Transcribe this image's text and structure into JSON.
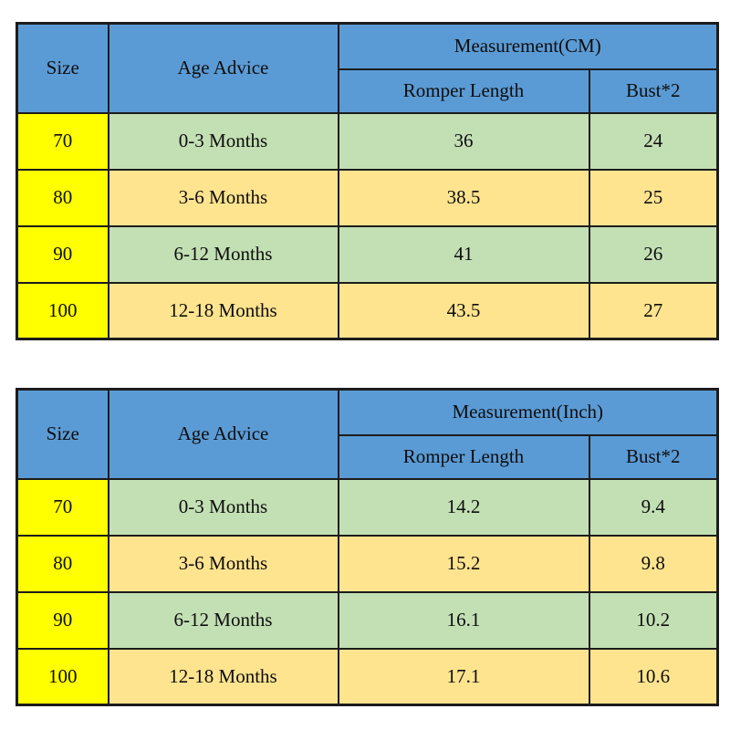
{
  "colors": {
    "header_blue": "#5b9bd5",
    "size_column_yellow": "#ffff00",
    "row_green": "#c3e0b4",
    "row_tan": "#ffe48f",
    "border_black": "#1c1c1c",
    "background_white": "#ffffff"
  },
  "tables": [
    {
      "name": "size-chart-cm",
      "headers": {
        "size": "Size",
        "age_advice": "Age Advice",
        "measurement": "Measurement(CM)",
        "romper_length": "Romper Length",
        "bust": "Bust*2"
      },
      "rows": [
        {
          "size": "70",
          "age": "0-3 Months",
          "romper_length": "36",
          "bust": "24"
        },
        {
          "size": "80",
          "age": "3-6 Months",
          "romper_length": "38.5",
          "bust": "25"
        },
        {
          "size": "90",
          "age": "6-12 Months",
          "romper_length": "41",
          "bust": "26"
        },
        {
          "size": "100",
          "age": "12-18 Months",
          "romper_length": "43.5",
          "bust": "27"
        }
      ]
    },
    {
      "name": "size-chart-inch",
      "headers": {
        "size": "Size",
        "age_advice": "Age Advice",
        "measurement": "Measurement(Inch)",
        "romper_length": "Romper Length",
        "bust": "Bust*2"
      },
      "rows": [
        {
          "size": "70",
          "age": "0-3 Months",
          "romper_length": "14.2",
          "bust": "9.4"
        },
        {
          "size": "80",
          "age": "3-6 Months",
          "romper_length": "15.2",
          "bust": "9.8"
        },
        {
          "size": "90",
          "age": "6-12 Months",
          "romper_length": "16.1",
          "bust": "10.2"
        },
        {
          "size": "100",
          "age": "12-18 Months",
          "romper_length": "17.1",
          "bust": "10.6"
        }
      ]
    }
  ],
  "chart_data": [
    {
      "type": "table",
      "title": "Measurement(CM)",
      "columns": [
        "Size",
        "Age Advice",
        "Romper Length",
        "Bust*2"
      ],
      "rows": [
        [
          "70",
          "0-3 Months",
          36,
          24
        ],
        [
          "80",
          "3-6 Months",
          38.5,
          25
        ],
        [
          "90",
          "6-12 Months",
          41,
          26
        ],
        [
          "100",
          "12-18 Months",
          43.5,
          27
        ]
      ]
    },
    {
      "type": "table",
      "title": "Measurement(Inch)",
      "columns": [
        "Size",
        "Age Advice",
        "Romper Length",
        "Bust*2"
      ],
      "rows": [
        [
          "70",
          "0-3 Months",
          14.2,
          9.4
        ],
        [
          "80",
          "3-6 Months",
          15.2,
          9.8
        ],
        [
          "90",
          "6-12 Months",
          16.1,
          10.2
        ],
        [
          "100",
          "12-18 Months",
          17.1,
          10.6
        ]
      ]
    }
  ]
}
